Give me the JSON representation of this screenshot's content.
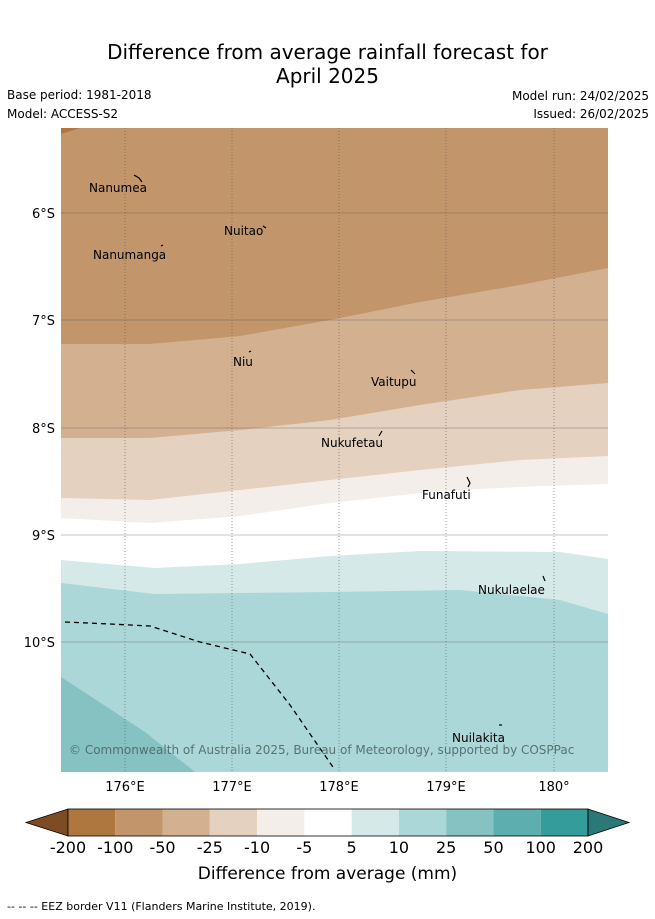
{
  "title_line1": "Difference from average rainfall forecast for",
  "title_line2": "April 2025",
  "base_period": "Base period: 1981-2018",
  "model": "Model: ACCESS-S2",
  "model_run": "Model run: 24/02/2025",
  "issued": "Issued: 26/02/2025",
  "lat_labels": [
    "6°S",
    "7°S",
    "8°S",
    "9°S",
    "10°S"
  ],
  "lon_labels": [
    "176°E",
    "177°E",
    "178°E",
    "179°E",
    "180°"
  ],
  "places": [
    {
      "id": "nanumea",
      "name": "Nanumea"
    },
    {
      "id": "nuitao",
      "name": "Nuitao"
    },
    {
      "id": "nanumanga",
      "name": "Nanumanga"
    },
    {
      "id": "niu",
      "name": "Niu"
    },
    {
      "id": "vaitupu",
      "name": "Vaitupu"
    },
    {
      "id": "nukufetau",
      "name": "Nukufetau"
    },
    {
      "id": "funafuti",
      "name": "Funafuti"
    },
    {
      "id": "nukulaelae",
      "name": "Nukulaelae"
    },
    {
      "id": "nuilakita",
      "name": "Nuilakita"
    }
  ],
  "copyright": "© Commonwealth of Australia 2025, Bureau of Meteorology, supported by COSPPac",
  "colorbar": {
    "ticks": [
      "-200",
      "-100",
      "-50",
      "-25",
      "-10",
      "-5",
      "5",
      "10",
      "25",
      "50",
      "100",
      "200"
    ],
    "colors": [
      "#7d4c22",
      "#ae773f",
      "#c2966a",
      "#d3b08f",
      "#e4d1c0",
      "#f3eee9",
      "#ffffff",
      "#d5e9e9",
      "#acd7d8",
      "#86c2c2",
      "#5daeaf",
      "#359c9c",
      "#2a7878"
    ],
    "title": "Difference from average (mm)"
  },
  "footnote": "--  --  -- EEZ border V11 (Flanders Marine Institute, 2019)."
}
